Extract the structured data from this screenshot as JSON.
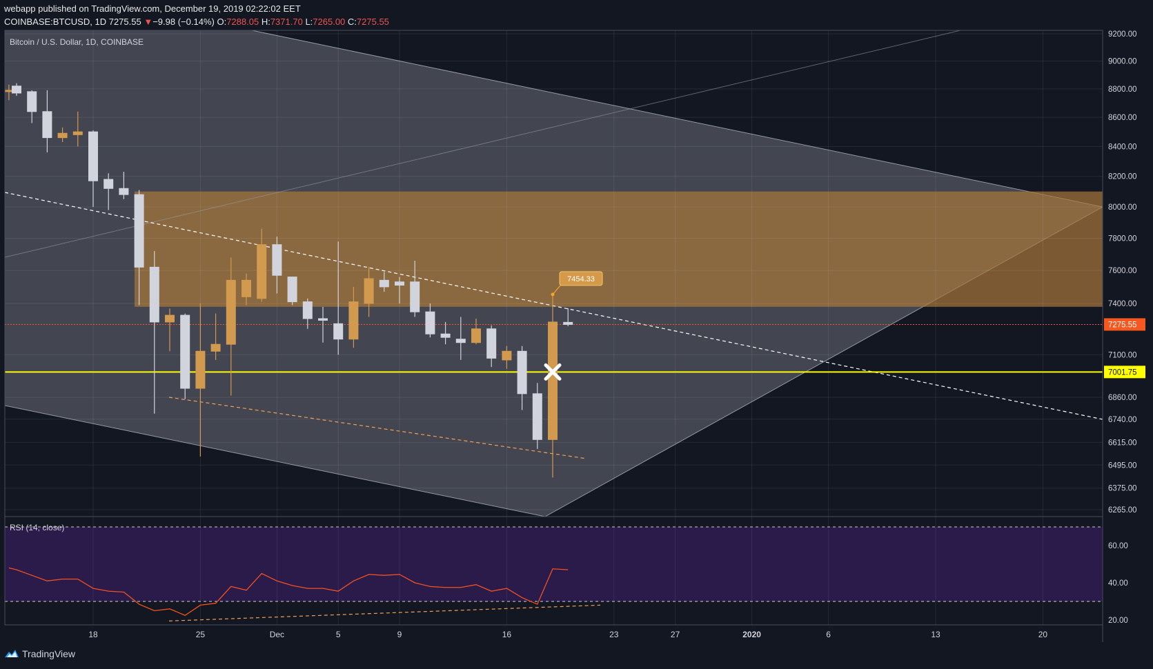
{
  "header": {
    "published_line": "webapp published on TradingView.com, December 19, 2019 02:22:02 EET",
    "symbol": "COINBASE:BTCUSD, 1D",
    "last": "7275.55",
    "change_arrow": "▼",
    "change": "−9.98 (−0.14%)",
    "o_label": "O:",
    "o": "7288.05",
    "h_label": "H:",
    "h": "7371.70",
    "l_label": "L:",
    "l": "7265.00",
    "c_label": "C:",
    "c": "7275.55"
  },
  "legend": {
    "title": "Bitcoin / U.S. Dollar, 1D, COINBASE",
    "rsi": "RSI (14, close)"
  },
  "footer": {
    "brand": "TradingView",
    "logo_icon": "tradingview-logo-icon"
  },
  "chart_data": [
    {
      "type": "candlestick",
      "title": "Bitcoin / U.S. Dollar, 1D, COINBASE",
      "y_scale": "log",
      "ylim": [
        6180,
        9300
      ],
      "y_ticks": [
        9200,
        9000,
        8800,
        8600,
        8400,
        8200,
        8000,
        7800,
        7600,
        7400,
        7100,
        6860,
        6740,
        6615,
        6495,
        6375,
        6265
      ],
      "y_tick_labels": [
        "9200.00",
        "9000.00",
        "8800.00",
        "8600.00",
        "8400.00",
        "8200.00",
        "8000.00",
        "7800.00",
        "7600.00",
        "7400.00",
        "7100.00",
        "6860.00",
        "6740.00",
        "6615.00",
        "6495.00",
        "6375.00",
        "6265.00"
      ],
      "x_tick_labels": [
        {
          "day": 18,
          "label": "18"
        },
        {
          "day": 25,
          "label": "25"
        },
        {
          "day": 30,
          "label": "Dec"
        },
        {
          "day": 34,
          "label": "5"
        },
        {
          "day": 38,
          "label": "9"
        },
        {
          "day": 45,
          "label": "16"
        },
        {
          "day": 52,
          "label": "23"
        },
        {
          "day": 56,
          "label": "27"
        },
        {
          "day": 61,
          "label": "2020"
        },
        {
          "day": 66,
          "label": "6"
        },
        {
          "day": 73,
          "label": "13"
        },
        {
          "day": 80,
          "label": "20"
        }
      ],
      "x_axis_note": "day numbers count days from 1 November 2019",
      "candles": [
        {
          "day": 12.5,
          "o": 8790,
          "h": 8830,
          "l": 8720,
          "c": 8790
        },
        {
          "day": 13,
          "o": 8820,
          "h": 8840,
          "l": 8750,
          "c": 8770
        },
        {
          "day": 14,
          "o": 8780,
          "h": 8790,
          "l": 8560,
          "c": 8640
        },
        {
          "day": 15,
          "o": 8640,
          "h": 8790,
          "l": 8360,
          "c": 8460
        },
        {
          "day": 16,
          "o": 8460,
          "h": 8530,
          "l": 8430,
          "c": 8490
        },
        {
          "day": 17,
          "o": 8480,
          "h": 8640,
          "l": 8400,
          "c": 8500
        },
        {
          "day": 18,
          "o": 8500,
          "h": 8510,
          "l": 8000,
          "c": 8170
        },
        {
          "day": 19,
          "o": 8180,
          "h": 8220,
          "l": 7980,
          "c": 8120
        },
        {
          "day": 20,
          "o": 8120,
          "h": 8230,
          "l": 8050,
          "c": 8080
        },
        {
          "day": 21,
          "o": 8080,
          "h": 8110,
          "l": 7390,
          "c": 7620
        },
        {
          "day": 22,
          "o": 7620,
          "h": 7720,
          "l": 6770,
          "c": 7290
        },
        {
          "day": 23,
          "o": 7290,
          "h": 7370,
          "l": 7120,
          "c": 7330
        },
        {
          "day": 24,
          "o": 7330,
          "h": 7340,
          "l": 6850,
          "c": 6910
        },
        {
          "day": 25,
          "o": 6910,
          "h": 7400,
          "l": 6540,
          "c": 7120
        },
        {
          "day": 26,
          "o": 7120,
          "h": 7340,
          "l": 7070,
          "c": 7160
        },
        {
          "day": 27,
          "o": 7160,
          "h": 7680,
          "l": 6870,
          "c": 7540
        },
        {
          "day": 28,
          "o": 7440,
          "h": 7580,
          "l": 7390,
          "c": 7540
        },
        {
          "day": 29,
          "o": 7430,
          "h": 7860,
          "l": 7410,
          "c": 7760
        },
        {
          "day": 30,
          "o": 7760,
          "h": 7810,
          "l": 7460,
          "c": 7570
        },
        {
          "day": 31,
          "o": 7560,
          "h": 7560,
          "l": 7390,
          "c": 7410
        },
        {
          "day": 32,
          "o": 7410,
          "h": 7430,
          "l": 7250,
          "c": 7310
        },
        {
          "day": 33,
          "o": 7310,
          "h": 7380,
          "l": 7170,
          "c": 7300
        },
        {
          "day": 34,
          "o": 7280,
          "h": 7780,
          "l": 7100,
          "c": 7190
        },
        {
          "day": 35,
          "o": 7190,
          "h": 7500,
          "l": 7140,
          "c": 7410
        },
        {
          "day": 36,
          "o": 7400,
          "h": 7620,
          "l": 7320,
          "c": 7550
        },
        {
          "day": 37,
          "o": 7540,
          "h": 7590,
          "l": 7470,
          "c": 7500
        },
        {
          "day": 38,
          "o": 7530,
          "h": 7560,
          "l": 7400,
          "c": 7510
        },
        {
          "day": 39,
          "o": 7530,
          "h": 7660,
          "l": 7320,
          "c": 7350
        },
        {
          "day": 40,
          "o": 7350,
          "h": 7400,
          "l": 7200,
          "c": 7220
        },
        {
          "day": 41,
          "o": 7220,
          "h": 7290,
          "l": 7160,
          "c": 7200
        },
        {
          "day": 42,
          "o": 7190,
          "h": 7320,
          "l": 7070,
          "c": 7170
        },
        {
          "day": 43,
          "o": 7170,
          "h": 7310,
          "l": 7160,
          "c": 7250
        },
        {
          "day": 44,
          "o": 7250,
          "h": 7270,
          "l": 7030,
          "c": 7080
        },
        {
          "day": 45,
          "o": 7070,
          "h": 7150,
          "l": 7020,
          "c": 7120
        },
        {
          "day": 46,
          "o": 7120,
          "h": 7150,
          "l": 6790,
          "c": 6880
        },
        {
          "day": 47,
          "o": 6880,
          "h": 6940,
          "l": 6580,
          "c": 6630
        },
        {
          "day": 48,
          "o": 6630,
          "h": 7460,
          "l": 6430,
          "c": 7290
        },
        {
          "day": 49,
          "o": 7288.05,
          "h": 7371.7,
          "l": 7265,
          "c": 7275.55
        }
      ],
      "annotations": [
        {
          "type": "price_callout",
          "text": "7454.33",
          "color": "#f5a623"
        },
        {
          "type": "resistance_zone",
          "from": 7380,
          "to": 8100,
          "color": "#a8773b"
        },
        {
          "type": "horizontal_line",
          "value": 7001.75,
          "label": "7001.75",
          "color": "#ffff00"
        },
        {
          "type": "last_price_line",
          "value": 7275.55,
          "label": "7275.55",
          "color": "#f6581f"
        }
      ]
    },
    {
      "type": "line",
      "title": "RSI (14, close)",
      "ylim": [
        18,
        75
      ],
      "y_ticks": [
        60,
        40,
        20
      ],
      "y_tick_labels": [
        "60.00",
        "40.00",
        "20.00"
      ],
      "bands": {
        "upper": 70,
        "lower": 30
      },
      "series": [
        {
          "x": [
            12.5,
            13,
            14,
            15,
            16,
            17,
            18,
            19,
            20,
            21,
            22,
            23,
            24,
            25,
            26,
            27,
            28,
            29,
            30,
            31,
            32,
            33,
            34,
            35,
            36,
            37,
            38,
            39,
            40,
            41,
            42,
            43,
            44,
            45,
            46,
            47,
            48,
            49
          ],
          "values": [
            48,
            47,
            44,
            41,
            42,
            42,
            37,
            35.5,
            35,
            28.5,
            25,
            26,
            22.5,
            28,
            29,
            38,
            36,
            45,
            41,
            38.5,
            37,
            37,
            35.5,
            41,
            44.5,
            44,
            44.5,
            40,
            38,
            37.5,
            37.5,
            39,
            35.5,
            37,
            32,
            28.5,
            47.5,
            47
          ]
        }
      ]
    }
  ],
  "colors": {
    "background": "#131722",
    "channel_fill": "#434651",
    "zone": "#a8773b",
    "bull": "#d19a4f",
    "bear": "#d1d4dc",
    "rsi_line": "#f4511e",
    "rsi_band": "#2a1b4a",
    "yellow_line": "#ffff00",
    "last_price": "#f6581f"
  }
}
